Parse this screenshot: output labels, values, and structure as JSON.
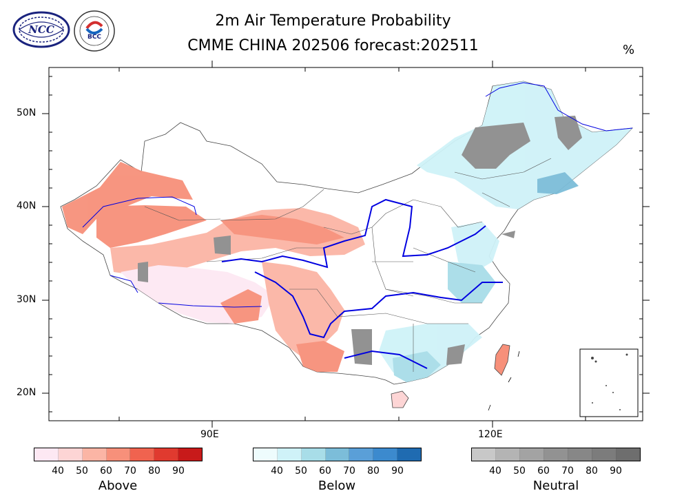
{
  "title_line1": "2m Air Temperature Probability",
  "title_line2": "CMME CHINA 202506 forecast:202511",
  "unit": "%",
  "logos": {
    "left_text": "NCC",
    "right_text": "BCC",
    "right_ring": "BEIJING CLIMATE CENTER"
  },
  "axes": {
    "x_labels": [
      "90E",
      "120E"
    ],
    "y_labels": [
      "50N",
      "40N",
      "30N",
      "20N"
    ]
  },
  "colorbars": [
    {
      "name": "Above",
      "ticks": [
        "40",
        "50",
        "60",
        "70",
        "80",
        "90"
      ],
      "colors": [
        "#fde8f3",
        "#fdd5d5",
        "#fbb5a5",
        "#f7907a",
        "#f0634f",
        "#e03a2f",
        "#c81a1a"
      ]
    },
    {
      "name": "Below",
      "ticks": [
        "40",
        "50",
        "60",
        "70",
        "80",
        "90"
      ],
      "colors": [
        "#eefcfd",
        "#cff2f8",
        "#a8dde8",
        "#7cbdd9",
        "#5a9fd8",
        "#3c8ace",
        "#1f6bb1"
      ]
    },
    {
      "name": "Neutral",
      "ticks": [
        "40",
        "50",
        "60",
        "70",
        "80",
        "90"
      ],
      "colors": [
        "#c8c8c8",
        "#b4b4b4",
        "#a3a3a3",
        "#929292",
        "#878787",
        "#7c7c7c",
        "#6e6e6e"
      ]
    }
  ]
}
